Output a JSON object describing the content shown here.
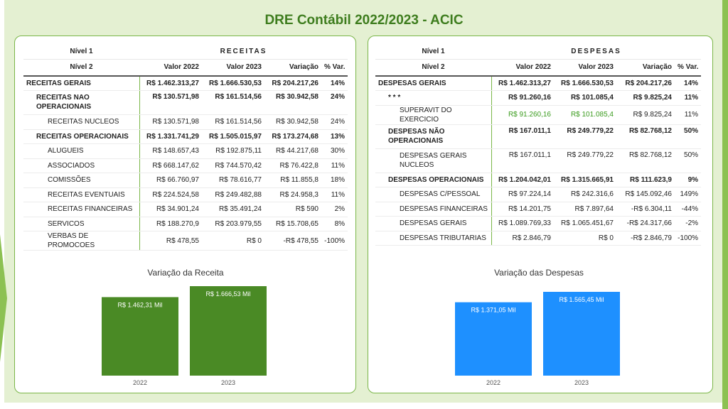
{
  "title": "DRE Contábil 2022/2023 - ACIC",
  "receitas": {
    "header_nivel1": "Nível 1",
    "header_nivel2": "Nível 2",
    "section": "RECEITAS",
    "col_2022": "Valor 2022",
    "col_2023": "Valor 2023",
    "col_var": "Variação",
    "col_pct": "% Var.",
    "rows": [
      {
        "label": "RECEITAS GERAIS",
        "v2022": "R$ 1.462.313,27",
        "v2023": "R$ 1.666.530,53",
        "var": "R$ 204.217,26",
        "pct": "14%"
      },
      {
        "label": "RECEITAS NAO OPERACIONAIS",
        "v2022": "R$ 130.571,98",
        "v2023": "R$ 161.514,56",
        "var": "R$ 30.942,58",
        "pct": "24%"
      },
      {
        "label": "RECEITAS NUCLEOS",
        "v2022": "R$ 130.571,98",
        "v2023": "R$ 161.514,56",
        "var": "R$ 30.942,58",
        "pct": "24%"
      },
      {
        "label": "RECEITAS OPERACIONAIS",
        "v2022": "R$ 1.331.741,29",
        "v2023": "R$ 1.505.015,97",
        "var": "R$ 173.274,68",
        "pct": "13%"
      },
      {
        "label": "ALUGUEIS",
        "v2022": "R$ 148.657,43",
        "v2023": "R$ 192.875,11",
        "var": "R$ 44.217,68",
        "pct": "30%"
      },
      {
        "label": "ASSOCIADOS",
        "v2022": "R$ 668.147,62",
        "v2023": "R$ 744.570,42",
        "var": "R$ 76.422,8",
        "pct": "11%"
      },
      {
        "label": "COMISSÕES",
        "v2022": "R$ 66.760,97",
        "v2023": "R$ 78.616,77",
        "var": "R$ 11.855,8",
        "pct": "18%"
      },
      {
        "label": "RECEITAS EVENTUAIS",
        "v2022": "R$ 224.524,58",
        "v2023": "R$ 249.482,88",
        "var": "R$ 24.958,3",
        "pct": "11%"
      },
      {
        "label": "RECEITAS FINANCEIRAS",
        "v2022": "R$ 34.901,24",
        "v2023": "R$ 35.491,24",
        "var": "R$ 590",
        "pct": "2%"
      },
      {
        "label": "SERVICOS",
        "v2022": "R$ 188.270,9",
        "v2023": "R$ 203.979,55",
        "var": "R$ 15.708,65",
        "pct": "8%"
      },
      {
        "label": "VERBAS DE PROMOCOES",
        "v2022": "R$ 478,55",
        "v2023": "R$ 0",
        "var": "-R$ 478,55",
        "pct": "-100%"
      }
    ]
  },
  "despesas": {
    "header_nivel1": "Nível 1",
    "header_nivel2": "Nível 2",
    "section": "DESPESAS",
    "col_2022": "Valor 2022",
    "col_2023": "Valor 2023",
    "col_var": "Variação",
    "col_pct": "% Var.",
    "rows": [
      {
        "label": "DESPESAS GERAIS",
        "v2022": "R$ 1.462.313,27",
        "v2023": "R$ 1.666.530,53",
        "var": "R$ 204.217,26",
        "pct": "14%"
      },
      {
        "label": "* * *",
        "v2022": "R$ 91.260,16",
        "v2023": "R$ 101.085,4",
        "var": "R$ 9.825,24",
        "pct": "11%"
      },
      {
        "label": "SUPERAVIT DO EXERCICIO",
        "v2022": "R$ 91.260,16",
        "v2023": "R$ 101.085,4",
        "var": "R$ 9.825,24",
        "pct": "11%"
      },
      {
        "label": "DESPESAS NÃO OPERACIONAIS",
        "v2022": "R$ 167.011,1",
        "v2023": "R$ 249.779,22",
        "var": "R$ 82.768,12",
        "pct": "50%"
      },
      {
        "label": "DESPESAS GERAIS NUCLEOS",
        "v2022": "R$ 167.011,1",
        "v2023": "R$ 249.779,22",
        "var": "R$ 82.768,12",
        "pct": "50%"
      },
      {
        "label": "DESPESAS OPERACIONAIS",
        "v2022": "R$ 1.204.042,01",
        "v2023": "R$ 1.315.665,91",
        "var": "R$ 111.623,9",
        "pct": "9%"
      },
      {
        "label": "DESPESAS C/PESSOAL",
        "v2022": "R$ 97.224,14",
        "v2023": "R$ 242.316,6",
        "var": "R$ 145.092,46",
        "pct": "149%"
      },
      {
        "label": "DESPESAS FINANCEIRAS",
        "v2022": "R$ 14.201,75",
        "v2023": "R$ 7.897,64",
        "var": "-R$ 6.304,11",
        "pct": "-44%"
      },
      {
        "label": "DESPESAS GERAIS",
        "v2022": "R$ 1.089.769,33",
        "v2023": "R$ 1.065.451,67",
        "var": "-R$ 24.317,66",
        "pct": "-2%"
      },
      {
        "label": "DESPESAS TRIBUTARIAS",
        "v2022": "R$ 2.846,79",
        "v2023": "R$ 0",
        "var": "-R$ 2.846,79",
        "pct": "-100%"
      }
    ]
  },
  "colors": {
    "title": "#3e7d1e",
    "receita_bar": "#4a8a25",
    "despesa_bar": "#1e90ff",
    "accent_green": "#3a9b1d"
  },
  "chart_data": [
    {
      "type": "bar",
      "title": "Variação da Receita",
      "categories": [
        "2022",
        "2023"
      ],
      "values": [
        1462.31,
        1666.53
      ],
      "data_labels": [
        "R$ 1.462,31 Mil",
        "R$ 1.666,53 Mil"
      ],
      "color": "#4a8a25",
      "ylim": [
        0,
        1666.53
      ],
      "grid": false
    },
    {
      "type": "bar",
      "title": "Variação das Despesas",
      "categories": [
        "2022",
        "2023"
      ],
      "values": [
        1371.05,
        1565.45
      ],
      "data_labels": [
        "R$ 1.371,05 Mil",
        "R$ 1.565,45 Mil"
      ],
      "color": "#1e90ff",
      "ylim": [
        0,
        1565.45
      ],
      "grid": false
    }
  ]
}
